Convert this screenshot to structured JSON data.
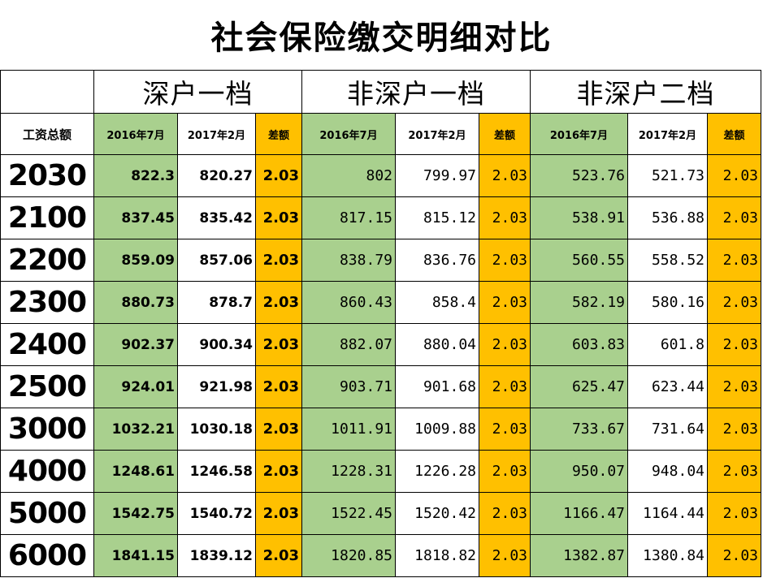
{
  "title": "社会保险缴交明细对比",
  "groups": [
    "深户一档",
    "非深户一档",
    "非深户二档"
  ],
  "wage_header": "工资总额",
  "sub_headers": [
    "2016年7月",
    "2017年2月",
    "差额"
  ],
  "colors": {
    "green": "#a9d08e",
    "gold": "#ffc000"
  },
  "rows": [
    {
      "wage": "2030",
      "g1": [
        "822.3",
        "820.27",
        "2.03"
      ],
      "g2": [
        "802",
        "799.97",
        "2.03"
      ],
      "g3": [
        "523.76",
        "521.73",
        "2.03"
      ]
    },
    {
      "wage": "2100",
      "g1": [
        "837.45",
        "835.42",
        "2.03"
      ],
      "g2": [
        "817.15",
        "815.12",
        "2.03"
      ],
      "g3": [
        "538.91",
        "536.88",
        "2.03"
      ]
    },
    {
      "wage": "2200",
      "g1": [
        "859.09",
        "857.06",
        "2.03"
      ],
      "g2": [
        "838.79",
        "836.76",
        "2.03"
      ],
      "g3": [
        "560.55",
        "558.52",
        "2.03"
      ]
    },
    {
      "wage": "2300",
      "g1": [
        "880.73",
        "878.7",
        "2.03"
      ],
      "g2": [
        "860.43",
        "858.4",
        "2.03"
      ],
      "g3": [
        "582.19",
        "580.16",
        "2.03"
      ]
    },
    {
      "wage": "2400",
      "g1": [
        "902.37",
        "900.34",
        "2.03"
      ],
      "g2": [
        "882.07",
        "880.04",
        "2.03"
      ],
      "g3": [
        "603.83",
        "601.8",
        "2.03"
      ]
    },
    {
      "wage": "2500",
      "g1": [
        "924.01",
        "921.98",
        "2.03"
      ],
      "g2": [
        "903.71",
        "901.68",
        "2.03"
      ],
      "g3": [
        "625.47",
        "623.44",
        "2.03"
      ]
    },
    {
      "wage": "3000",
      "g1": [
        "1032.21",
        "1030.18",
        "2.03"
      ],
      "g2": [
        "1011.91",
        "1009.88",
        "2.03"
      ],
      "g3": [
        "733.67",
        "731.64",
        "2.03"
      ]
    },
    {
      "wage": "4000",
      "g1": [
        "1248.61",
        "1246.58",
        "2.03"
      ],
      "g2": [
        "1228.31",
        "1226.28",
        "2.03"
      ],
      "g3": [
        "950.07",
        "948.04",
        "2.03"
      ]
    },
    {
      "wage": "5000",
      "g1": [
        "1542.75",
        "1540.72",
        "2.03"
      ],
      "g2": [
        "1522.45",
        "1520.42",
        "2.03"
      ],
      "g3": [
        "1166.47",
        "1164.44",
        "2.03"
      ]
    },
    {
      "wage": "6000",
      "g1": [
        "1841.15",
        "1839.12",
        "2.03"
      ],
      "g2": [
        "1820.85",
        "1818.82",
        "2.03"
      ],
      "g3": [
        "1382.87",
        "1380.84",
        "2.03"
      ]
    }
  ]
}
